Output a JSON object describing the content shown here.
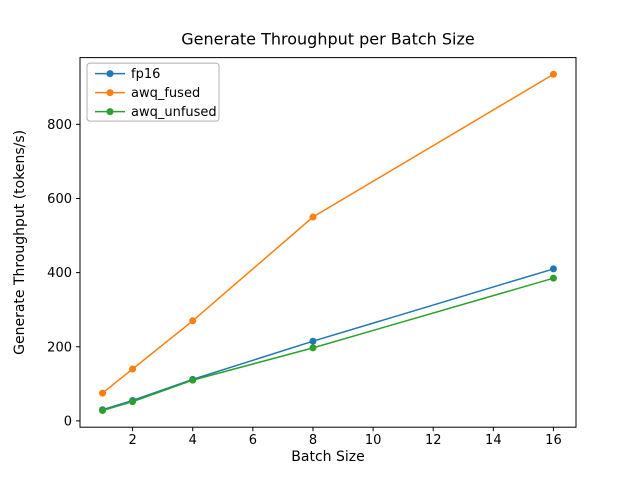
{
  "chart_data": {
    "type": "line",
    "title": "Generate Throughput per Batch Size",
    "xlabel": "Batch Size",
    "ylabel": "Generate Throughput (tokens/s)",
    "x": [
      1,
      2,
      4,
      8,
      16
    ],
    "series": [
      {
        "name": "fp16",
        "color": "#1f77b4",
        "values": [
          30,
          55,
          112,
          215,
          410
        ]
      },
      {
        "name": "awq_fused",
        "color": "#ff7f0e",
        "values": [
          75,
          140,
          270,
          550,
          935
        ]
      },
      {
        "name": "awq_unfused",
        "color": "#2ca02c",
        "values": [
          28,
          52,
          110,
          197,
          385
        ]
      }
    ],
    "x_ticks": [
      2,
      4,
      6,
      8,
      10,
      12,
      14,
      16
    ],
    "y_ticks": [
      0,
      200,
      400,
      600,
      800
    ],
    "x_range": [
      0.25,
      16.75
    ],
    "y_range": [
      -17,
      980
    ],
    "legend_position": "upper left",
    "grid": false,
    "marker": "circle",
    "background_color": "#ffffff",
    "axis_color": "#000000"
  }
}
